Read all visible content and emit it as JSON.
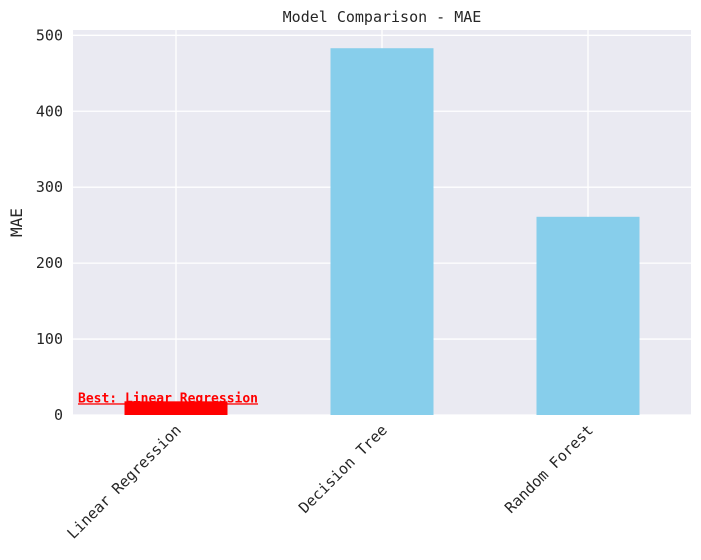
{
  "chart_data": {
    "type": "bar",
    "title": "Model Comparison - MAE",
    "xlabel": "",
    "ylabel": "MAE",
    "categories": [
      "Linear Regression",
      "Decision Tree",
      "Random Forest"
    ],
    "values": [
      18,
      483,
      261
    ],
    "highlight_index": 0,
    "ylim": [
      0,
      507
    ],
    "yticks": [
      0,
      100,
      200,
      300,
      400,
      500
    ],
    "grid": true,
    "annotation": {
      "text": "Best: Linear Regression",
      "category": "Linear Regression",
      "y": 18,
      "color": "#ff0000"
    },
    "colors": {
      "bar": "#87ceeb",
      "highlight": "#ff0000",
      "plot_background": "#eaeaf2",
      "grid": "#ffffff",
      "text": "#262626"
    }
  }
}
